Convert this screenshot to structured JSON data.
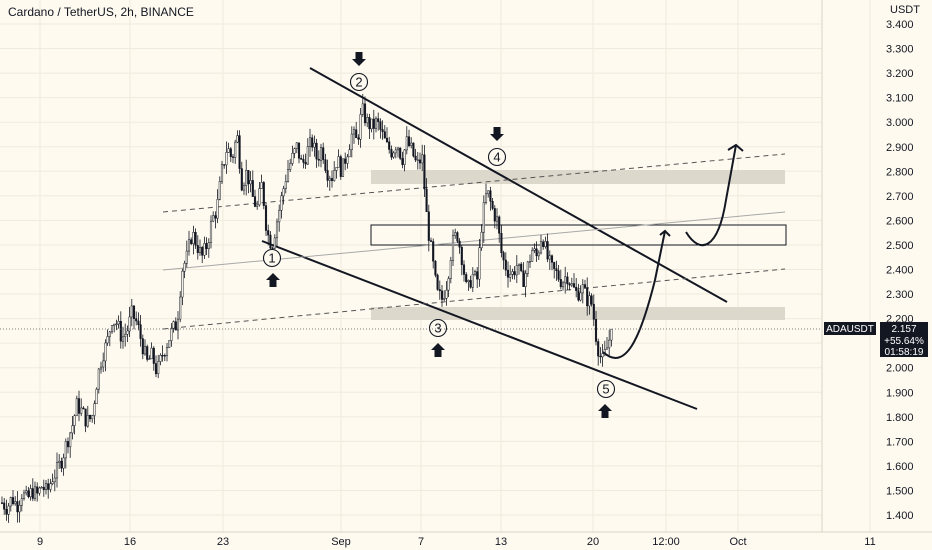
{
  "chart_data": {
    "type": "candlestick",
    "title": "Cardano / TetherUS, 2h, BINANCE",
    "y_axis": {
      "unit_label": "USDT",
      "min": 1.35,
      "max": 3.45,
      "ticks": [
        "3.400",
        "3.300",
        "3.200",
        "3.100",
        "3.000",
        "2.900",
        "2.800",
        "2.700",
        "2.600",
        "2.500",
        "2.400",
        "2.300",
        "2.200",
        "2.100",
        "2.000",
        "1.900",
        "1.800",
        "1.700",
        "1.600",
        "1.500",
        "1.400"
      ]
    },
    "x_axis": {
      "ticks": [
        "9",
        "16",
        "23",
        "Sep",
        "7",
        "13",
        "20",
        "12:00",
        "Oct",
        "11"
      ]
    },
    "price_badge": {
      "symbol": "ADAUSDT",
      "price": "2.157",
      "change": "+55.64%",
      "countdown": "01:58:19"
    },
    "current_price": 2.157,
    "price_path": [
      [
        0,
        1.45
      ],
      [
        5,
        1.43
      ],
      [
        10,
        1.47
      ],
      [
        15,
        1.44
      ],
      [
        20,
        1.49
      ],
      [
        25,
        1.46
      ],
      [
        30,
        1.5
      ],
      [
        35,
        1.48
      ],
      [
        40,
        1.52
      ],
      [
        45,
        1.49
      ],
      [
        50,
        1.55
      ],
      [
        55,
        1.58
      ],
      [
        60,
        1.63
      ],
      [
        65,
        1.7
      ],
      [
        70,
        1.76
      ],
      [
        75,
        1.85
      ],
      [
        80,
        1.82
      ],
      [
        85,
        1.78
      ],
      [
        90,
        1.8
      ],
      [
        95,
        1.95
      ],
      [
        100,
        2.05
      ],
      [
        105,
        2.1
      ],
      [
        110,
        2.2
      ],
      [
        115,
        2.18
      ],
      [
        120,
        2.12
      ],
      [
        125,
        2.15
      ],
      [
        130,
        2.22
      ],
      [
        135,
        2.18
      ],
      [
        140,
        2.1
      ],
      [
        145,
        2.02
      ],
      [
        150,
        2.05
      ],
      [
        155,
        1.98
      ],
      [
        160,
        2.05
      ],
      [
        165,
        2.1
      ],
      [
        170,
        2.15
      ],
      [
        175,
        2.18
      ],
      [
        180,
        2.4
      ],
      [
        185,
        2.45
      ],
      [
        190,
        2.55
      ],
      [
        195,
        2.5
      ],
      [
        200,
        2.45
      ],
      [
        205,
        2.5
      ],
      [
        210,
        2.6
      ],
      [
        215,
        2.65
      ],
      [
        220,
        2.8
      ],
      [
        225,
        2.9
      ],
      [
        230,
        2.85
      ],
      [
        235,
        2.95
      ],
      [
        240,
        2.75
      ],
      [
        245,
        2.8
      ],
      [
        250,
        2.7
      ],
      [
        255,
        2.65
      ],
      [
        260,
        2.75
      ],
      [
        265,
        2.55
      ],
      [
        270,
        2.5
      ],
      [
        275,
        2.6
      ],
      [
        280,
        2.7
      ],
      [
        285,
        2.8
      ],
      [
        290,
        2.85
      ],
      [
        295,
        2.9
      ],
      [
        300,
        2.82
      ],
      [
        305,
        2.88
      ],
      [
        310,
        2.92
      ],
      [
        315,
        2.85
      ],
      [
        320,
        2.9
      ],
      [
        325,
        2.8
      ],
      [
        330,
        2.78
      ],
      [
        335,
        2.85
      ],
      [
        340,
        2.8
      ],
      [
        345,
        2.88
      ],
      [
        350,
        2.95
      ],
      [
        355,
        2.92
      ],
      [
        360,
        3.05
      ],
      [
        365,
        3.0
      ],
      [
        370,
        2.98
      ],
      [
        375,
        3.0
      ],
      [
        380,
        2.95
      ],
      [
        385,
        2.9
      ],
      [
        390,
        2.88
      ],
      [
        395,
        2.92
      ],
      [
        400,
        2.85
      ],
      [
        405,
        2.92
      ],
      [
        410,
        2.88
      ],
      [
        415,
        2.82
      ],
      [
        420,
        2.86
      ],
      [
        425,
        2.6
      ],
      [
        430,
        2.45
      ],
      [
        435,
        2.3
      ],
      [
        440,
        2.28
      ],
      [
        445,
        2.35
      ],
      [
        450,
        2.5
      ],
      [
        455,
        2.55
      ],
      [
        460,
        2.45
      ],
      [
        465,
        2.3
      ],
      [
        470,
        2.38
      ],
      [
        475,
        2.35
      ],
      [
        480,
        2.6
      ],
      [
        485,
        2.72
      ],
      [
        490,
        2.65
      ],
      [
        495,
        2.6
      ],
      [
        500,
        2.45
      ],
      [
        505,
        2.4
      ],
      [
        510,
        2.38
      ],
      [
        515,
        2.42
      ],
      [
        520,
        2.35
      ],
      [
        525,
        2.4
      ],
      [
        530,
        2.48
      ],
      [
        535,
        2.45
      ],
      [
        540,
        2.55
      ],
      [
        545,
        2.45
      ],
      [
        550,
        2.4
      ],
      [
        555,
        2.38
      ],
      [
        560,
        2.35
      ],
      [
        565,
        2.38
      ],
      [
        570,
        2.33
      ],
      [
        575,
        2.3
      ],
      [
        580,
        2.33
      ],
      [
        585,
        2.28
      ],
      [
        590,
        2.26
      ],
      [
        595,
        2.1
      ],
      [
        600,
        2.02
      ],
      [
        605,
        2.08
      ],
      [
        610,
        2.16
      ],
      [
        613,
        2.157
      ]
    ],
    "annotations": {
      "markers": [
        {
          "label": "1",
          "price": 2.455
        },
        {
          "label": "2",
          "price": 3.162
        },
        {
          "label": "3",
          "price": 2.164
        },
        {
          "label": "4",
          "price": 2.855
        },
        {
          "label": "5",
          "price": 1.935
        }
      ]
    }
  }
}
